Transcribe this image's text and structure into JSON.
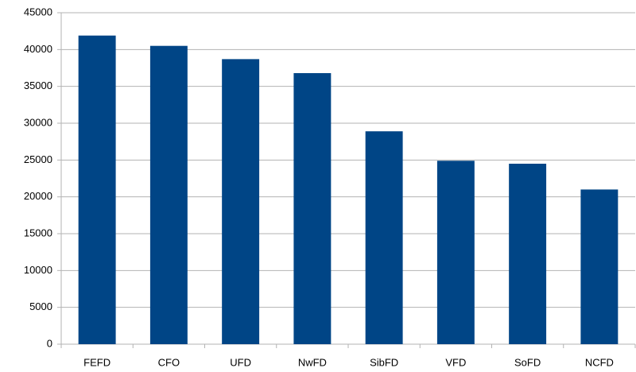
{
  "chart_data": {
    "type": "bar",
    "categories": [
      "FEFD",
      "CFO",
      "UFD",
      "NwFD",
      "SibFD",
      "VFD",
      "SoFD",
      "NCFD"
    ],
    "values": [
      41900,
      40500,
      38700,
      36800,
      28900,
      24900,
      24500,
      21000
    ],
    "color": "#004586",
    "ylim": [
      0,
      45000
    ],
    "yticks": [
      0,
      5000,
      10000,
      15000,
      20000,
      25000,
      30000,
      35000,
      40000,
      45000
    ],
    "grid": true
  }
}
